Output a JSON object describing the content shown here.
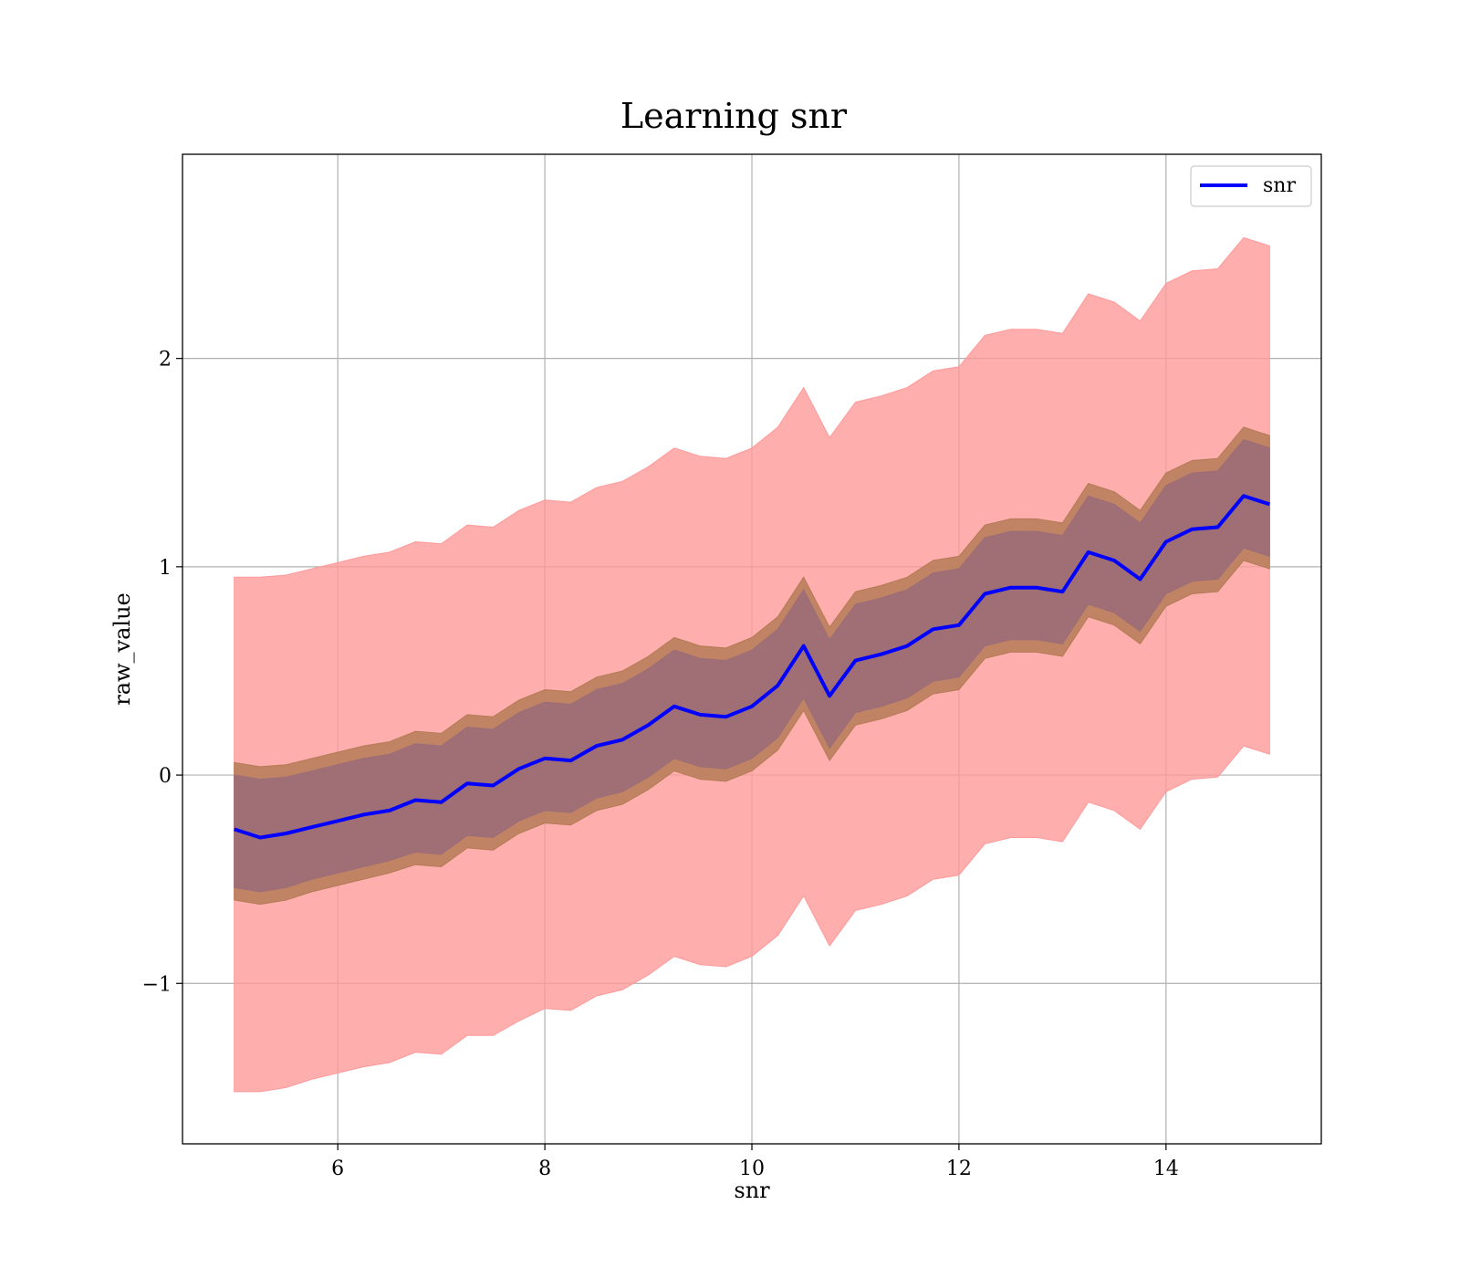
{
  "chart_data": {
    "type": "line",
    "title": "Learning snr",
    "xlabel": "snr",
    "ylabel": "raw_value",
    "xlim": [
      4.5,
      15.5
    ],
    "ylim": [
      -1.77,
      2.98
    ],
    "xticks": [
      6,
      8,
      10,
      12,
      14
    ],
    "yticks": [
      -1,
      0,
      1,
      2
    ],
    "xtick_labels": [
      "6",
      "8",
      "10",
      "12",
      "14"
    ],
    "ytick_labels": [
      "−1",
      "0",
      "1",
      "2"
    ],
    "grid": true,
    "legend": {
      "position": "top-right",
      "entries": [
        "snr"
      ]
    },
    "colors": {
      "mean_line": "#0000ff",
      "outer_band": "#ff9a9a",
      "middle_band": "#b57b56",
      "inner_band": "#9c6d78"
    },
    "series": [
      {
        "name": "snr",
        "x": [
          5.0,
          5.25,
          5.5,
          5.75,
          6.0,
          6.25,
          6.5,
          6.75,
          7.0,
          7.25,
          7.5,
          7.75,
          8.0,
          8.25,
          8.5,
          8.75,
          9.0,
          9.25,
          9.5,
          9.75,
          10.0,
          10.25,
          10.5,
          10.75,
          11.0,
          11.25,
          11.5,
          11.75,
          12.0,
          12.25,
          12.5,
          12.75,
          13.0,
          13.25,
          13.5,
          13.75,
          14.0,
          14.25,
          14.5,
          14.75,
          15.0
        ],
        "y": [
          -0.26,
          -0.3,
          -0.28,
          -0.25,
          -0.22,
          -0.19,
          -0.17,
          -0.12,
          -0.13,
          -0.04,
          -0.05,
          0.03,
          0.08,
          0.07,
          0.14,
          0.17,
          0.24,
          0.33,
          0.29,
          0.28,
          0.33,
          0.43,
          0.62,
          0.38,
          0.55,
          0.58,
          0.62,
          0.7,
          0.72,
          0.87,
          0.9,
          0.9,
          0.88,
          1.07,
          1.03,
          0.94,
          1.12,
          1.18,
          1.19,
          1.34,
          1.3
        ]
      }
    ],
    "bands": [
      {
        "lower": [
          -1.52,
          -1.52,
          -1.5,
          -1.46,
          -1.43,
          -1.4,
          -1.38,
          -1.33,
          -1.34,
          -1.25,
          -1.25,
          -1.18,
          -1.12,
          -1.13,
          -1.06,
          -1.03,
          -0.96,
          -0.87,
          -0.91,
          -0.92,
          -0.87,
          -0.77,
          -0.58,
          -0.82,
          -0.65,
          -0.62,
          -0.58,
          -0.5,
          -0.48,
          -0.33,
          -0.3,
          -0.3,
          -0.32,
          -0.13,
          -0.17,
          -0.26,
          -0.08,
          -0.02,
          -0.01,
          0.14,
          0.1
        ],
        "upper": [
          0.95,
          0.95,
          0.96,
          0.99,
          1.02,
          1.05,
          1.07,
          1.12,
          1.11,
          1.2,
          1.19,
          1.27,
          1.32,
          1.31,
          1.38,
          1.41,
          1.48,
          1.57,
          1.53,
          1.52,
          1.57,
          1.67,
          1.86,
          1.62,
          1.79,
          1.82,
          1.86,
          1.94,
          1.96,
          2.11,
          2.14,
          2.14,
          2.12,
          2.31,
          2.27,
          2.18,
          2.36,
          2.42,
          2.43,
          2.58,
          2.54
        ]
      },
      {
        "lower": [
          -0.6,
          -0.62,
          -0.6,
          -0.56,
          -0.53,
          -0.5,
          -0.47,
          -0.43,
          -0.44,
          -0.35,
          -0.36,
          -0.28,
          -0.23,
          -0.24,
          -0.17,
          -0.14,
          -0.07,
          0.02,
          -0.02,
          -0.03,
          0.02,
          0.12,
          0.31,
          0.07,
          0.24,
          0.27,
          0.31,
          0.39,
          0.41,
          0.56,
          0.59,
          0.59,
          0.57,
          0.76,
          0.72,
          0.63,
          0.81,
          0.87,
          0.88,
          1.03,
          0.99
        ],
        "upper": [
          0.06,
          0.04,
          0.05,
          0.08,
          0.11,
          0.14,
          0.16,
          0.21,
          0.2,
          0.29,
          0.28,
          0.36,
          0.41,
          0.4,
          0.47,
          0.5,
          0.57,
          0.66,
          0.62,
          0.61,
          0.66,
          0.76,
          0.95,
          0.71,
          0.88,
          0.91,
          0.95,
          1.03,
          1.05,
          1.2,
          1.23,
          1.23,
          1.21,
          1.4,
          1.36,
          1.27,
          1.45,
          1.51,
          1.52,
          1.67,
          1.63
        ]
      },
      {
        "lower": [
          -0.54,
          -0.56,
          -0.54,
          -0.5,
          -0.47,
          -0.44,
          -0.41,
          -0.37,
          -0.38,
          -0.29,
          -0.3,
          -0.22,
          -0.17,
          -0.18,
          -0.11,
          -0.08,
          -0.01,
          0.08,
          0.04,
          0.03,
          0.08,
          0.18,
          0.37,
          0.13,
          0.3,
          0.33,
          0.37,
          0.45,
          0.47,
          0.62,
          0.65,
          0.65,
          0.63,
          0.82,
          0.78,
          0.69,
          0.87,
          0.93,
          0.94,
          1.09,
          1.05
        ],
        "upper": [
          0.0,
          -0.02,
          -0.01,
          0.02,
          0.05,
          0.08,
          0.1,
          0.15,
          0.14,
          0.23,
          0.22,
          0.3,
          0.35,
          0.34,
          0.41,
          0.44,
          0.51,
          0.6,
          0.56,
          0.55,
          0.6,
          0.7,
          0.89,
          0.65,
          0.82,
          0.85,
          0.89,
          0.97,
          0.99,
          1.14,
          1.17,
          1.17,
          1.15,
          1.34,
          1.3,
          1.21,
          1.39,
          1.45,
          1.46,
          1.61,
          1.57
        ]
      }
    ]
  }
}
